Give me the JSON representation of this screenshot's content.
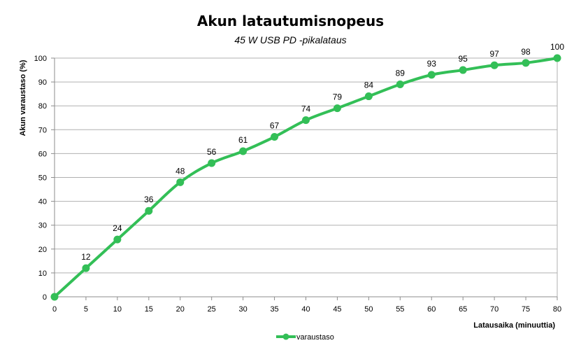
{
  "chart_data": {
    "type": "line",
    "title": "Akun latautumisnopeus",
    "subtitle": "45 W USB PD -pikalataus",
    "xlabel": "Latausaika  (minuuttia)",
    "ylabel": "Akun varaustaso  (%)",
    "x": [
      0,
      5,
      10,
      15,
      20,
      25,
      30,
      35,
      40,
      45,
      50,
      55,
      60,
      65,
      70,
      75,
      80
    ],
    "series": [
      {
        "name": "varaustaso",
        "color": "#33bf57",
        "values": [
          0,
          12,
          24,
          36,
          48,
          56,
          61,
          67,
          74,
          79,
          84,
          89,
          93,
          95,
          97,
          98,
          100
        ]
      }
    ],
    "xlim": [
      0,
      80
    ],
    "ylim": [
      0,
      100
    ],
    "xticks": [
      0,
      5,
      10,
      15,
      20,
      25,
      30,
      35,
      40,
      45,
      50,
      55,
      60,
      65,
      70,
      75,
      80
    ],
    "yticks": [
      0,
      10,
      20,
      30,
      40,
      50,
      60,
      70,
      80,
      90,
      100
    ],
    "grid": "horizontal",
    "data_labels": "shown except at 0",
    "legend": "bottom-center"
  }
}
